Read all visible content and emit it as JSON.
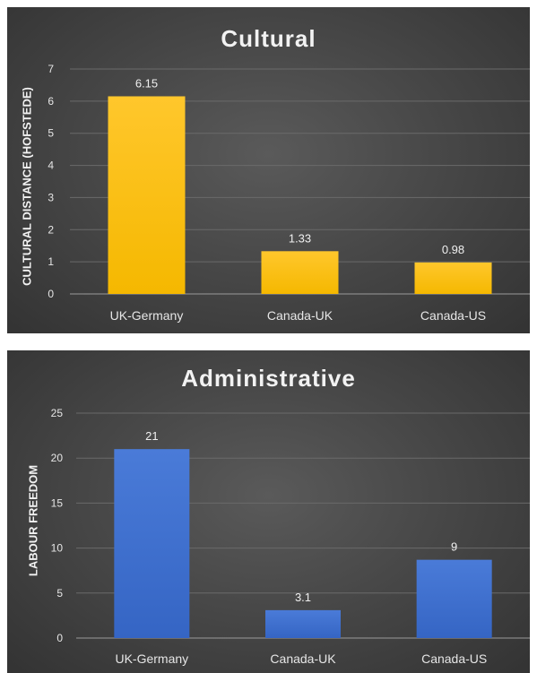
{
  "chart_data": [
    {
      "type": "bar",
      "title": "Cultural",
      "xlabel": "",
      "ylabel": "CULTURAL DISTANCE (HOFSTEDE)",
      "categories": [
        "UK-Germany",
        "Canada-UK",
        "Canada-US"
      ],
      "values": [
        6.15,
        1.33,
        0.98
      ],
      "data_labels": [
        "6.15",
        "1.33",
        "0.98"
      ],
      "ylim": [
        0,
        7
      ],
      "yticks": [
        0,
        1,
        2,
        3,
        4,
        5,
        6,
        7
      ],
      "grid": true,
      "legend": "none",
      "bar_color": "#f5b800",
      "bar_color_top": "#ffc72c"
    },
    {
      "type": "bar",
      "title": "Administrative",
      "xlabel": "",
      "ylabel": "LABOUR FREEDOM",
      "categories": [
        "UK-Germany",
        "Canada-UK",
        "Canada-US"
      ],
      "values": [
        21,
        3.1,
        8.7
      ],
      "data_labels": [
        "21",
        "3.1",
        "9"
      ],
      "ylim": [
        0,
        25
      ],
      "yticks": [
        0,
        5,
        10,
        15,
        20,
        25
      ],
      "grid": true,
      "legend": "none",
      "bar_color": "#3565c4",
      "bar_color_top": "#4a7bd8"
    }
  ]
}
